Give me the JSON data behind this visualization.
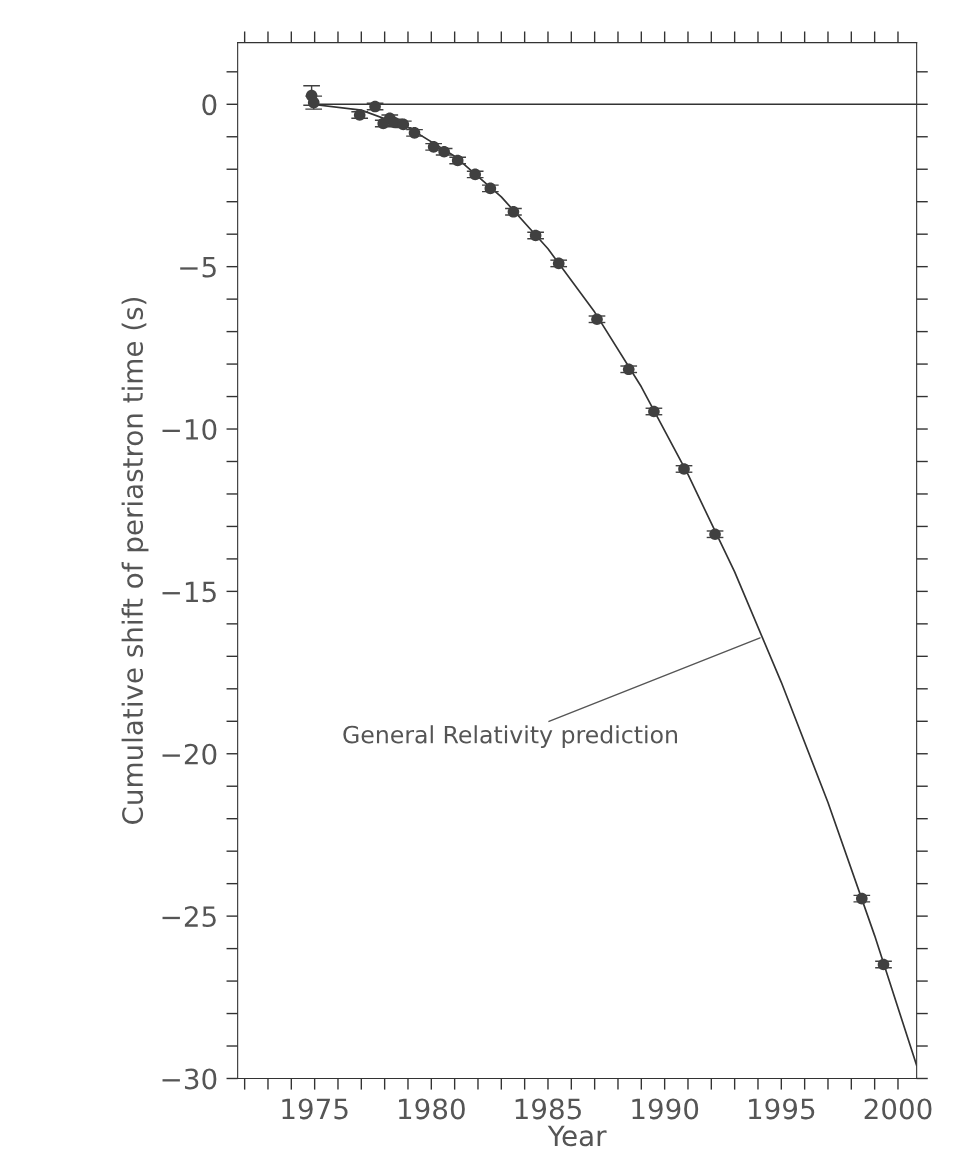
{
  "chart_data": {
    "type": "scatter",
    "xlabel": "Year",
    "ylabel": "Cumulative shift of periastron time (s)",
    "xlim": [
      1971.7,
      2000.8
    ],
    "ylim": [
      -30,
      1.9
    ],
    "xticks": [
      {
        "value": 1972,
        "label": null
      },
      {
        "value": 1973,
        "label": null
      },
      {
        "value": 1974,
        "label": null
      },
      1975,
      {
        "value": 1976,
        "label": null
      },
      {
        "value": 1977,
        "label": null
      },
      {
        "value": 1978,
        "label": null
      },
      {
        "value": 1979,
        "label": null
      },
      1980,
      {
        "value": 1981,
        "label": null
      },
      {
        "value": 1982,
        "label": null
      },
      {
        "value": 1983,
        "label": null
      },
      {
        "value": 1984,
        "label": null
      },
      1985,
      {
        "value": 1986,
        "label": null
      },
      {
        "value": 1987,
        "label": null
      },
      {
        "value": 1988,
        "label": null
      },
      {
        "value": 1989,
        "label": null
      },
      1990,
      {
        "value": 1991,
        "label": null
      },
      {
        "value": 1992,
        "label": null
      },
      {
        "value": 1993,
        "label": null
      },
      {
        "value": 1994,
        "label": null
      },
      1995,
      {
        "value": 1996,
        "label": null
      },
      {
        "value": 1997,
        "label": null
      },
      {
        "value": 1998,
        "label": null
      },
      {
        "value": 1999,
        "label": null
      },
      2000
    ],
    "yticks": [
      -30,
      {
        "value": -29,
        "label": null
      },
      {
        "value": -28,
        "label": null
      },
      {
        "value": -27,
        "label": null
      },
      {
        "value": -26,
        "label": null
      },
      -25,
      {
        "value": -24,
        "label": null
      },
      {
        "value": -23,
        "label": null
      },
      {
        "value": -22,
        "label": null
      },
      {
        "value": -21,
        "label": null
      },
      -20,
      {
        "value": -19,
        "label": null
      },
      {
        "value": -18,
        "label": null
      },
      {
        "value": -17,
        "label": null
      },
      {
        "value": -16,
        "label": null
      },
      -15,
      {
        "value": -14,
        "label": null
      },
      {
        "value": -13,
        "label": null
      },
      {
        "value": -12,
        "label": null
      },
      {
        "value": -11,
        "label": null
      },
      -10,
      {
        "value": -9,
        "label": null
      },
      {
        "value": -8,
        "label": null
      },
      {
        "value": -7,
        "label": null
      },
      {
        "value": -6,
        "label": null
      },
      -5,
      {
        "value": -4,
        "label": null
      },
      {
        "value": -3,
        "label": null
      },
      {
        "value": -2,
        "label": null
      },
      {
        "value": -1,
        "label": null
      },
      0,
      {
        "value": 1,
        "label": null
      }
    ],
    "grid": false,
    "legend": false,
    "marker": "circle",
    "series": [
      {
        "color": "#404040",
        "x": [
          1974.87,
          1974.96,
          1976.93,
          1977.59,
          1977.94,
          1978.22,
          1978.41,
          1978.8,
          1979.28,
          1980.1,
          1980.55,
          1981.13,
          1981.88,
          1982.53,
          1983.52,
          1984.47,
          1985.46,
          1987.1,
          1988.46,
          1989.54,
          1990.83,
          1992.16,
          1998.45,
          1999.38
        ],
        "values": [
          0.27,
          0.05,
          -0.33,
          -0.07,
          -0.59,
          -0.43,
          -0.56,
          -0.62,
          -0.88,
          -1.31,
          -1.46,
          -1.73,
          -2.16,
          -2.59,
          -3.31,
          -4.04,
          -4.9,
          -6.62,
          -8.16,
          -9.46,
          -11.23,
          -13.24,
          -24.46,
          -26.49
        ],
        "errors": [
          0.3,
          0.2,
          0.1,
          0.1,
          0.1,
          0.1,
          0.1,
          0.1,
          0.1,
          0.1,
          0.1,
          0.1,
          0.1,
          0.1,
          0.1,
          0.1,
          0.1,
          0.1,
          0.1,
          0.1,
          0.1,
          0.1,
          0.1,
          0.1
        ]
      },
      {
        "type": "line",
        "color": "#333333",
        "marker": "none",
        "line_style": "solid",
        "x": [
          1974.9,
          1977,
          1979,
          1981,
          1983,
          1985,
          1987,
          1989,
          1991,
          1993,
          1995,
          1997,
          1999,
          2000.8
        ],
        "values": [
          0,
          -0.18,
          -0.71,
          -1.6,
          -2.85,
          -4.45,
          -6.4,
          -8.7,
          -11.4,
          -14.4,
          -17.8,
          -21.5,
          -25.6,
          -29.6
        ]
      },
      {
        "type": "line",
        "color": "#333333",
        "marker": "none",
        "line_style": "solid",
        "x": [
          1974.9,
          2000.8
        ],
        "values": [
          0,
          0
        ]
      }
    ],
    "annotations": [
      {
        "text": "General Relativity prediction",
        "x": 1994.2,
        "y": -16.4
      }
    ]
  }
}
